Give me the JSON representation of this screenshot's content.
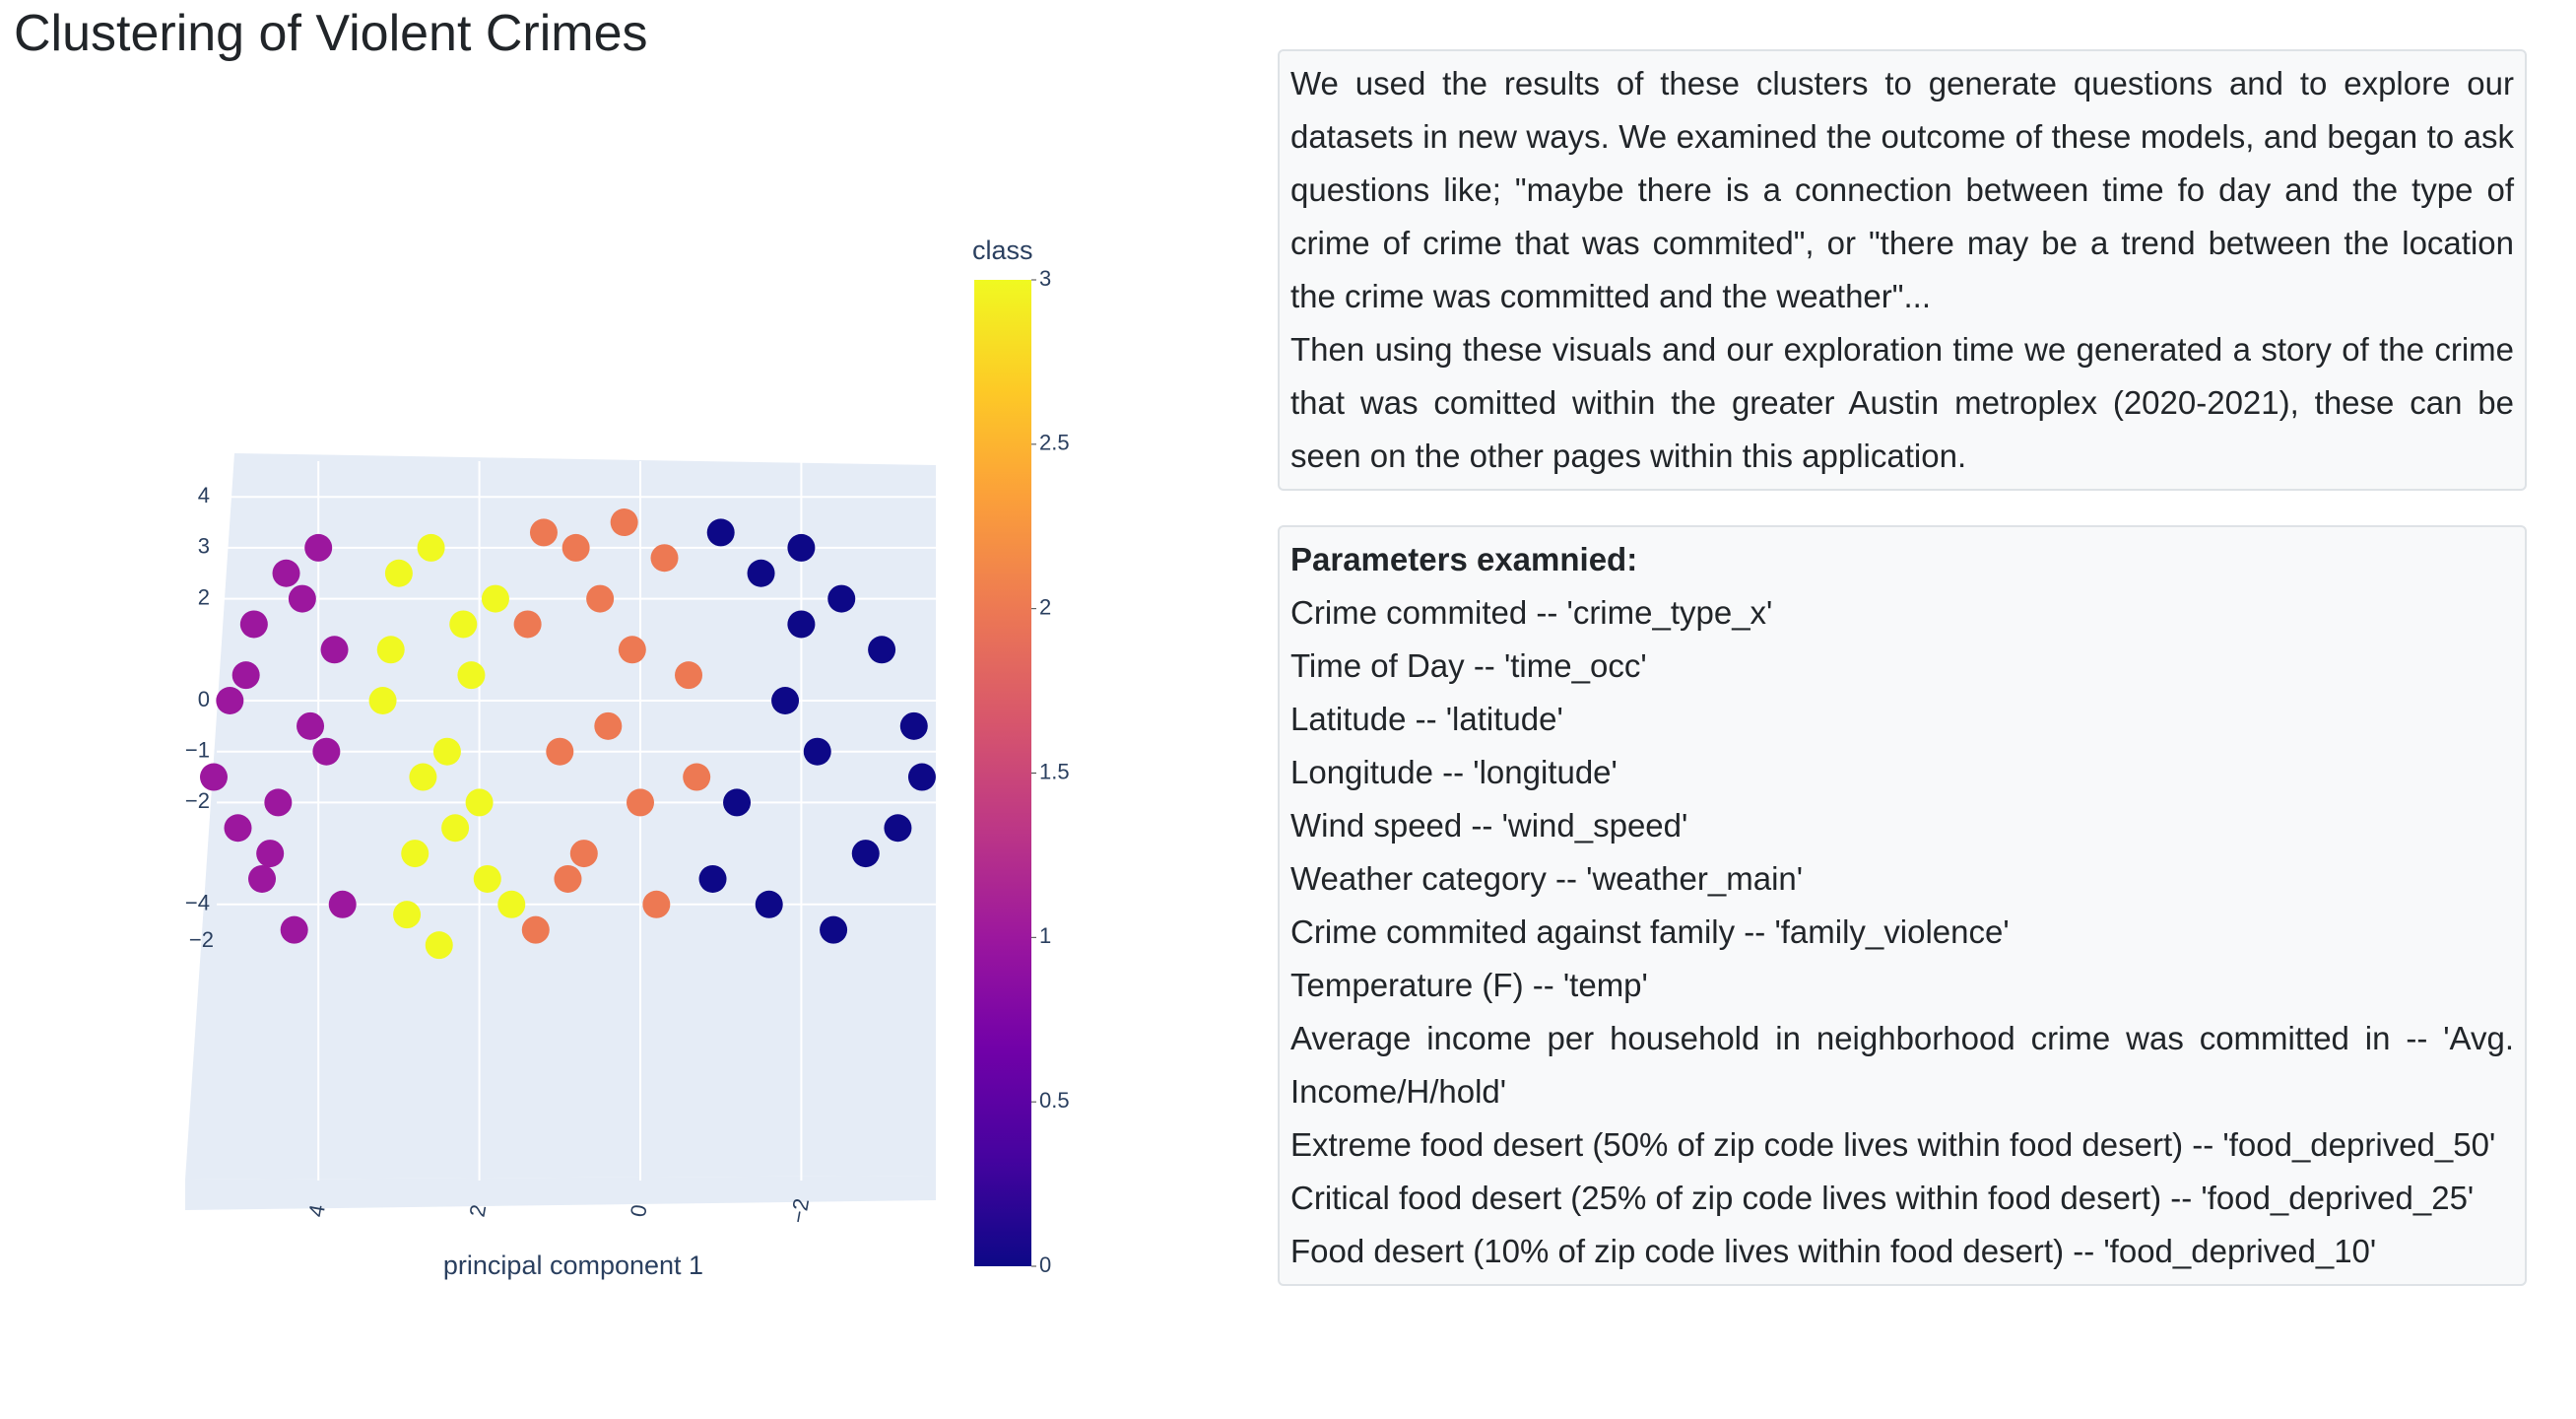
{
  "header": {
    "title": "Clustering of Violent Crimes"
  },
  "description": {
    "paragraphs": [
      "We used the results of these clusters to generate questions and to explore our datasets in new ways. We examined the outcome of these models, and began to ask questions like; \"maybe there is a connection between time fo day and the type of crime of crime that was commited\", or \"there may be a trend between the location the crime was committed and the weather\"...",
      "Then using these visuals and our exploration time we generated a story of the crime that was comitted within the greater Austin metroplex (2020-2021), these can be seen on the other pages within this application."
    ]
  },
  "parameters": {
    "heading": "Parameters examnied:",
    "items": [
      "Crime commited -- 'crime_type_x'",
      "Time of Day -- 'time_occ'",
      "Latitude -- 'latitude'",
      "Longitude -- 'longitude'",
      "Wind speed -- 'wind_speed'",
      "Weather category -- 'weather_main'",
      "Crime commited against family -- 'family_violence'",
      "Temperature (F) -- 'temp'",
      "Average income per household in neighborhood crime was committed in -- 'Avg. Income/H/hold'",
      "Extreme food desert (50% of zip code lives within food desert) -- 'food_deprived_50'",
      "Critical food desert (25% of zip code lives within food desert) -- 'food_deprived_25'",
      "Food desert (10% of zip code lives within food desert) -- 'food_deprived_10'"
    ]
  },
  "chart_data": {
    "type": "scatter3d",
    "x_label": "principal component 1",
    "xlim": [
      5.6,
      -3.8
    ],
    "xticks": [
      4,
      2,
      0,
      {
        "value": -2,
        "label": "−2"
      }
    ],
    "zlim": [
      -5.3,
      4.6
    ],
    "zticks": [
      4,
      3,
      2,
      0,
      {
        "value": -1,
        "label": "−1"
      },
      {
        "value": -2,
        "label": "−2"
      },
      {
        "value": -4,
        "label": "−4"
      }
    ],
    "yticks": [
      {
        "value": -2,
        "label": "−2"
      }
    ],
    "colorbar": {
      "title": "class",
      "lim": [
        0,
        3
      ],
      "ticks": [
        0,
        0.5,
        1,
        1.5,
        2,
        2.5,
        3
      ]
    },
    "colorscale": [
      [
        0,
        "#0d0887"
      ],
      [
        0.111,
        "#46039f"
      ],
      [
        0.222,
        "#7201a8"
      ],
      [
        0.333,
        "#9c179e"
      ],
      [
        0.444,
        "#bd3786"
      ],
      [
        0.556,
        "#d8576b"
      ],
      [
        0.667,
        "#ed7953"
      ],
      [
        0.778,
        "#fb9f3a"
      ],
      [
        0.889,
        "#fdca26"
      ],
      [
        1,
        "#f0f921"
      ]
    ],
    "points": {
      "x": [
        4.2,
        4.8,
        5.1,
        3.9,
        4.5,
        4.0,
        5.3,
        4.6,
        3.7,
        4.9,
        4.3,
        5.0,
        3.8,
        4.4,
        4.7,
        4.1,
        3.0,
        2.6,
        2.2,
        1.8,
        3.2,
        2.4,
        2.0,
        2.8,
        1.6,
        2.5,
        3.1,
        2.1,
        2.7,
        1.9,
        2.3,
        2.9,
        1.2,
        0.8,
        0.2,
        -0.3,
        1.4,
        0.5,
        -0.6,
        1.0,
        0.0,
        0.7,
        -0.2,
        1.3,
        0.4,
        -0.7,
        0.9,
        0.1,
        -1.0,
        -1.5,
        -2.0,
        -2.5,
        -3.0,
        -1.8,
        -2.2,
        -3.4,
        -1.2,
        -2.8,
        -1.6,
        -3.2,
        -2.4,
        -0.9,
        -2.0,
        -3.5
      ],
      "z": [
        2,
        1.5,
        0,
        -1,
        -2,
        3,
        -1.5,
        -3,
        -4,
        0.5,
        -4.5,
        -2.5,
        1,
        2.5,
        -3.5,
        -0.5,
        2.5,
        3,
        1.5,
        2,
        0,
        -1,
        -2,
        -3,
        -4,
        -4.8,
        1,
        0.5,
        -1.5,
        -3.5,
        -2.5,
        -4.2,
        3.3,
        3.0,
        3.5,
        2.8,
        1.5,
        2,
        0.5,
        -1,
        -2,
        -3,
        -4,
        -4.5,
        -0.5,
        -1.5,
        -3.5,
        1,
        3.3,
        2.5,
        3,
        2,
        1,
        0,
        -1,
        -0.5,
        -2,
        -3,
        -4,
        -2.5,
        -4.5,
        -3.5,
        1.5,
        -1.5
      ],
      "class": [
        1,
        1,
        1,
        1,
        1,
        1,
        1,
        1,
        1,
        1,
        1,
        1,
        1,
        1,
        1,
        1,
        3,
        3,
        3,
        3,
        3,
        3,
        3,
        3,
        3,
        3,
        3,
        3,
        3,
        3,
        3,
        3,
        2,
        2,
        2,
        2,
        2,
        2,
        2,
        2,
        2,
        2,
        2,
        2,
        2,
        2,
        2,
        2,
        0,
        0,
        0,
        0,
        0,
        0,
        0,
        0,
        0,
        0,
        0,
        0,
        0,
        0,
        0,
        0
      ]
    }
  }
}
